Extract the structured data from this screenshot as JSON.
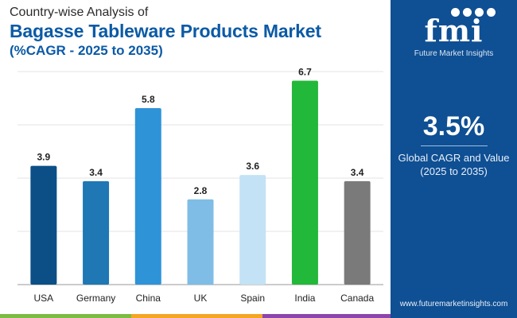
{
  "header": {
    "subtitle": "Country-wise Analysis of",
    "title": "Bagasse Tableware Products Market",
    "title2": "(%CAGR - 2025 to 2035)"
  },
  "panel": {
    "logo_text": "fmi",
    "logo_caption": "Future Market Insights",
    "cagr_value": "3.5%",
    "cagr_label_line1": "Global CAGR and Value",
    "cagr_label_line2": "(2025 to 2035)",
    "website": "www.futuremarketinsights.com"
  },
  "colors": {
    "panel_bg": "#0f4f93",
    "title": "#0b5aa6",
    "strip": [
      "#7dbb42",
      "#f5a623",
      "#8e44ad",
      "#0f4f93"
    ]
  },
  "chart_data": {
    "type": "bar",
    "title": "Bagasse Tableware Products Market",
    "categories": [
      "USA",
      "Germany",
      "China",
      "UK",
      "Spain",
      "India",
      "Canada"
    ],
    "values": [
      3.9,
      3.4,
      5.8,
      2.8,
      3.6,
      6.7,
      3.4
    ],
    "value_labels": [
      "3.9",
      "3.4",
      "5.8",
      "2.8",
      "3.6",
      "6.7",
      "3.4"
    ],
    "bar_colors": [
      "#0b4f86",
      "#1f77b4",
      "#2f93d8",
      "#7fbde6",
      "#c4e2f5",
      "#22b83a",
      "#7a7a7a"
    ],
    "ylim": [
      0,
      7
    ],
    "grid": true,
    "xlabel": "",
    "ylabel": ""
  }
}
